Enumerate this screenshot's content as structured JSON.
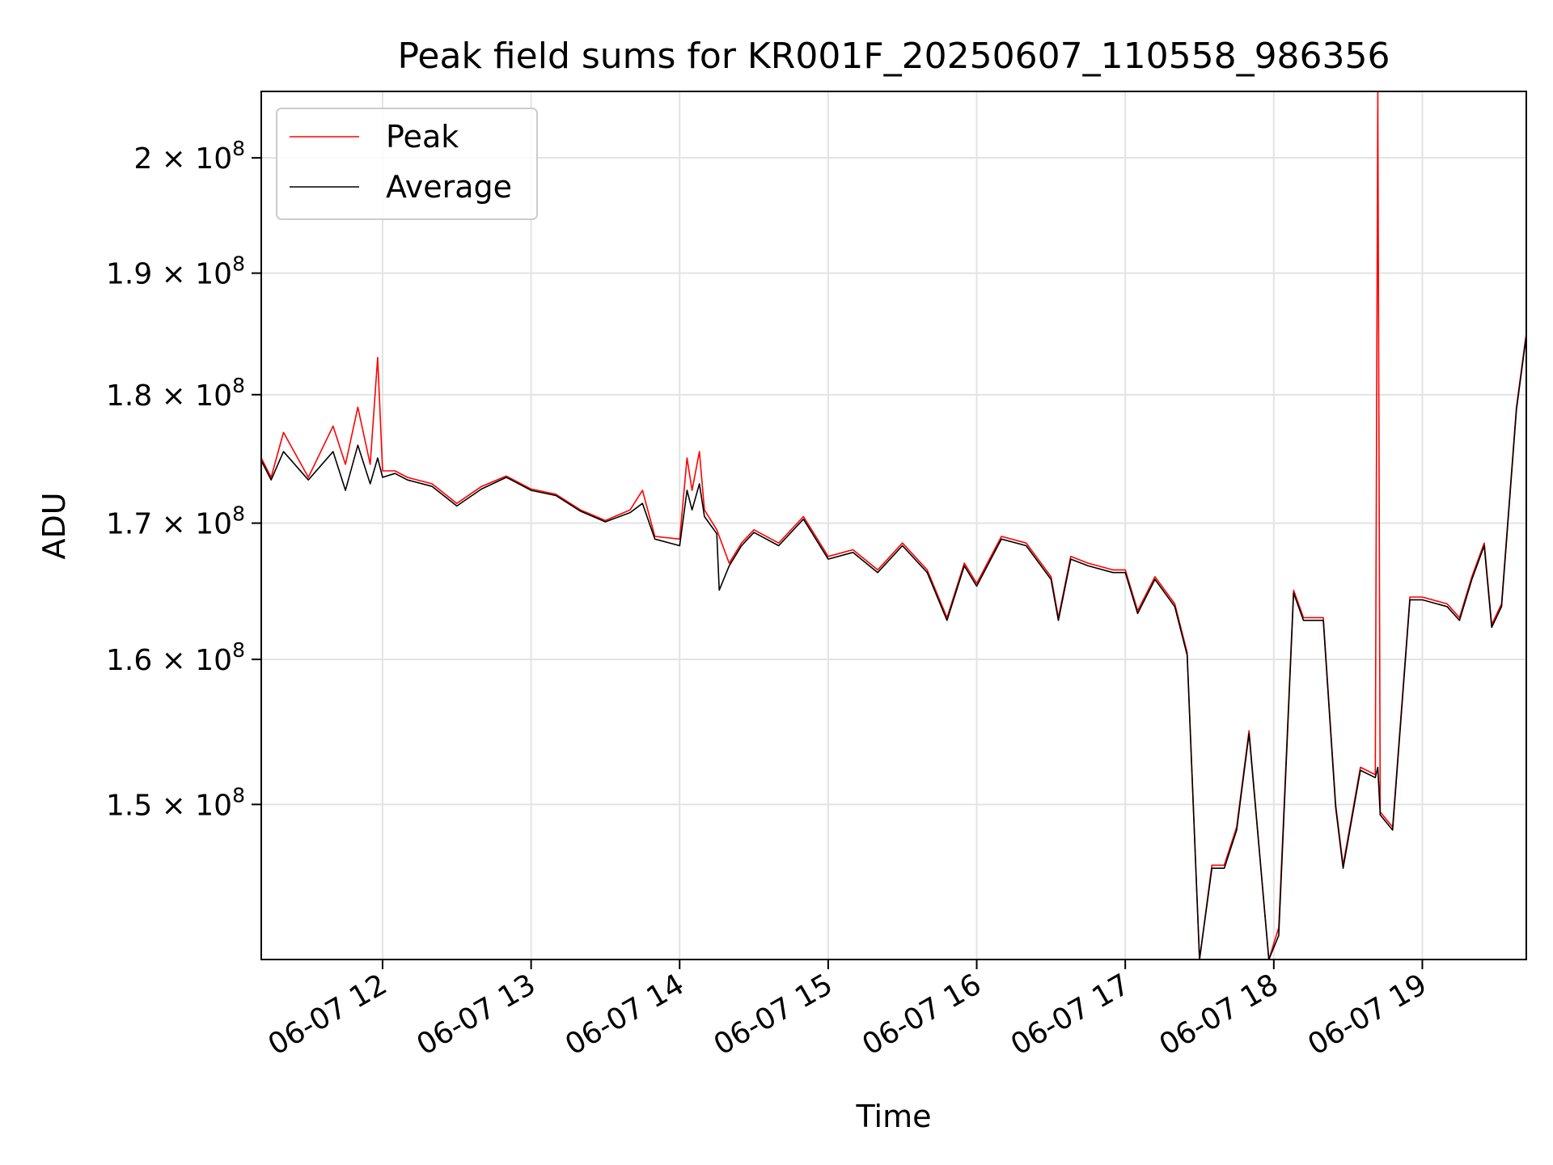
{
  "chart_data": {
    "type": "line",
    "title": "Peak field sums for KR001F_20250607_110558_986356",
    "xlabel": "Time",
    "ylabel": "ADU",
    "yscale": "log",
    "xlim": [
      "2025-06-07 11:11",
      "2025-06-07 19:42"
    ],
    "ylim": [
      140000000,
      206000000
    ],
    "xticks": [
      {
        "t": "2025-06-07 12:00",
        "label": "06-07 12"
      },
      {
        "t": "2025-06-07 13:00",
        "label": "06-07 13"
      },
      {
        "t": "2025-06-07 14:00",
        "label": "06-07 14"
      },
      {
        "t": "2025-06-07 15:00",
        "label": "06-07 15"
      },
      {
        "t": "2025-06-07 16:00",
        "label": "06-07 16"
      },
      {
        "t": "2025-06-07 17:00",
        "label": "06-07 17"
      },
      {
        "t": "2025-06-07 18:00",
        "label": "06-07 18"
      },
      {
        "t": "2025-06-07 19:00",
        "label": "06-07 19"
      }
    ],
    "yticks": [
      {
        "value": 150000000,
        "mantissa": "1.5",
        "exp": "8"
      },
      {
        "value": 160000000,
        "mantissa": "1.6",
        "exp": "8"
      },
      {
        "value": 170000000,
        "mantissa": "1.7",
        "exp": "8"
      },
      {
        "value": 180000000,
        "mantissa": "1.8",
        "exp": "8"
      },
      {
        "value": 190000000,
        "mantissa": "1.9",
        "exp": "8"
      },
      {
        "value": 200000000,
        "mantissa": "2",
        "exp": "8"
      }
    ],
    "tick_base": "10",
    "grid": true,
    "legend_position": "top-left",
    "series": [
      {
        "name": "Peak",
        "color": "#ff0000",
        "x": [
          "2025-06-07 11:11",
          "2025-06-07 11:15",
          "2025-06-07 11:20",
          "2025-06-07 11:30",
          "2025-06-07 11:40",
          "2025-06-07 11:45",
          "2025-06-07 11:50",
          "2025-06-07 11:55",
          "2025-06-07 11:58",
          "2025-06-07 12:00",
          "2025-06-07 12:05",
          "2025-06-07 12:10",
          "2025-06-07 12:20",
          "2025-06-07 12:30",
          "2025-06-07 12:40",
          "2025-06-07 12:50",
          "2025-06-07 13:00",
          "2025-06-07 13:10",
          "2025-06-07 13:20",
          "2025-06-07 13:30",
          "2025-06-07 13:40",
          "2025-06-07 13:45",
          "2025-06-07 13:50",
          "2025-06-07 14:00",
          "2025-06-07 14:03",
          "2025-06-07 14:05",
          "2025-06-07 14:08",
          "2025-06-07 14:10",
          "2025-06-07 14:15",
          "2025-06-07 14:20",
          "2025-06-07 14:25",
          "2025-06-07 14:30",
          "2025-06-07 14:40",
          "2025-06-07 14:50",
          "2025-06-07 14:55",
          "2025-06-07 15:00",
          "2025-06-07 15:10",
          "2025-06-07 15:20",
          "2025-06-07 15:30",
          "2025-06-07 15:40",
          "2025-06-07 15:48",
          "2025-06-07 15:55",
          "2025-06-07 16:00",
          "2025-06-07 16:10",
          "2025-06-07 16:20",
          "2025-06-07 16:30",
          "2025-06-07 16:33",
          "2025-06-07 16:38",
          "2025-06-07 16:45",
          "2025-06-07 16:55",
          "2025-06-07 17:00",
          "2025-06-07 17:05",
          "2025-06-07 17:12",
          "2025-06-07 17:20",
          "2025-06-07 17:25",
          "2025-06-07 17:30",
          "2025-06-07 17:35",
          "2025-06-07 17:40",
          "2025-06-07 17:45",
          "2025-06-07 17:50",
          "2025-06-07 17:58",
          "2025-06-07 18:02",
          "2025-06-07 18:08",
          "2025-06-07 18:12",
          "2025-06-07 18:20",
          "2025-06-07 18:25",
          "2025-06-07 18:28",
          "2025-06-07 18:35",
          "2025-06-07 18:41",
          "2025-06-07 18:42",
          "2025-06-07 18:43",
          "2025-06-07 18:48",
          "2025-06-07 18:55",
          "2025-06-07 19:00",
          "2025-06-07 19:10",
          "2025-06-07 19:15",
          "2025-06-07 19:20",
          "2025-06-07 19:25",
          "2025-06-07 19:28",
          "2025-06-07 19:32",
          "2025-06-07 19:38",
          "2025-06-07 19:42"
        ],
        "y": [
          175000000,
          173500000,
          177000000,
          173500000,
          177500000,
          174500000,
          179000000,
          174500000,
          183000000,
          174000000,
          174000000,
          173500000,
          173000000,
          171500000,
          172800000,
          173600000,
          172600000,
          172200000,
          171000000,
          170200000,
          171000000,
          172500000,
          169000000,
          168800000,
          175000000,
          172500000,
          175500000,
          171000000,
          169500000,
          167000000,
          168500000,
          169500000,
          168500000,
          170500000,
          169000000,
          167500000,
          168000000,
          166500000,
          168500000,
          166500000,
          163000000,
          167000000,
          165500000,
          169000000,
          168500000,
          166000000,
          163000000,
          167500000,
          167000000,
          166500000,
          166500000,
          163500000,
          166000000,
          164000000,
          160500000,
          140000000,
          146000000,
          146000000,
          148500000,
          155000000,
          140000000,
          142000000,
          165000000,
          163000000,
          163000000,
          150000000,
          146000000,
          152500000,
          152000000,
          206000000,
          149500000,
          148500000,
          164500000,
          164500000,
          164000000,
          163000000,
          166000000,
          168500000,
          162500000,
          164000000,
          179000000,
          185000000
        ]
      },
      {
        "name": "Average",
        "color": "#000000",
        "x": [
          "2025-06-07 11:11",
          "2025-06-07 11:15",
          "2025-06-07 11:20",
          "2025-06-07 11:30",
          "2025-06-07 11:40",
          "2025-06-07 11:45",
          "2025-06-07 11:50",
          "2025-06-07 11:55",
          "2025-06-07 11:58",
          "2025-06-07 12:00",
          "2025-06-07 12:05",
          "2025-06-07 12:10",
          "2025-06-07 12:20",
          "2025-06-07 12:30",
          "2025-06-07 12:40",
          "2025-06-07 12:50",
          "2025-06-07 13:00",
          "2025-06-07 13:10",
          "2025-06-07 13:20",
          "2025-06-07 13:30",
          "2025-06-07 13:40",
          "2025-06-07 13:45",
          "2025-06-07 13:50",
          "2025-06-07 14:00",
          "2025-06-07 14:03",
          "2025-06-07 14:05",
          "2025-06-07 14:08",
          "2025-06-07 14:10",
          "2025-06-07 14:15",
          "2025-06-07 14:16",
          "2025-06-07 14:20",
          "2025-06-07 14:25",
          "2025-06-07 14:30",
          "2025-06-07 14:40",
          "2025-06-07 14:50",
          "2025-06-07 14:55",
          "2025-06-07 15:00",
          "2025-06-07 15:10",
          "2025-06-07 15:20",
          "2025-06-07 15:30",
          "2025-06-07 15:40",
          "2025-06-07 15:48",
          "2025-06-07 15:55",
          "2025-06-07 16:00",
          "2025-06-07 16:10",
          "2025-06-07 16:20",
          "2025-06-07 16:30",
          "2025-06-07 16:33",
          "2025-06-07 16:38",
          "2025-06-07 16:45",
          "2025-06-07 16:55",
          "2025-06-07 17:00",
          "2025-06-07 17:05",
          "2025-06-07 17:12",
          "2025-06-07 17:20",
          "2025-06-07 17:25",
          "2025-06-07 17:30",
          "2025-06-07 17:35",
          "2025-06-07 17:40",
          "2025-06-07 17:45",
          "2025-06-07 17:50",
          "2025-06-07 17:58",
          "2025-06-07 18:02",
          "2025-06-07 18:08",
          "2025-06-07 18:12",
          "2025-06-07 18:20",
          "2025-06-07 18:25",
          "2025-06-07 18:28",
          "2025-06-07 18:35",
          "2025-06-07 18:41",
          "2025-06-07 18:42",
          "2025-06-07 18:43",
          "2025-06-07 18:48",
          "2025-06-07 18:55",
          "2025-06-07 19:00",
          "2025-06-07 19:10",
          "2025-06-07 19:15",
          "2025-06-07 19:20",
          "2025-06-07 19:25",
          "2025-06-07 19:28",
          "2025-06-07 19:32",
          "2025-06-07 19:38",
          "2025-06-07 19:42"
        ],
        "y": [
          174800000,
          173300000,
          175500000,
          173300000,
          175500000,
          172500000,
          176000000,
          173000000,
          175000000,
          173500000,
          173800000,
          173300000,
          172800000,
          171300000,
          172600000,
          173500000,
          172500000,
          172100000,
          170900000,
          170100000,
          170800000,
          171500000,
          168800000,
          168300000,
          172500000,
          171000000,
          173000000,
          170500000,
          169200000,
          165000000,
          166800000,
          168300000,
          169300000,
          168300000,
          170300000,
          168800000,
          167300000,
          167800000,
          166300000,
          168300000,
          166300000,
          162800000,
          166800000,
          165300000,
          168800000,
          168300000,
          165800000,
          162800000,
          167300000,
          166800000,
          166300000,
          166300000,
          163300000,
          165800000,
          163800000,
          160300000,
          140000000,
          145800000,
          145800000,
          148300000,
          154800000,
          140000000,
          141500000,
          164800000,
          162800000,
          162800000,
          149800000,
          145800000,
          152300000,
          151800000,
          152500000,
          149300000,
          148300000,
          164300000,
          164300000,
          163800000,
          162800000,
          165800000,
          168300000,
          162300000,
          163800000,
          178800000,
          184800000
        ]
      }
    ]
  }
}
